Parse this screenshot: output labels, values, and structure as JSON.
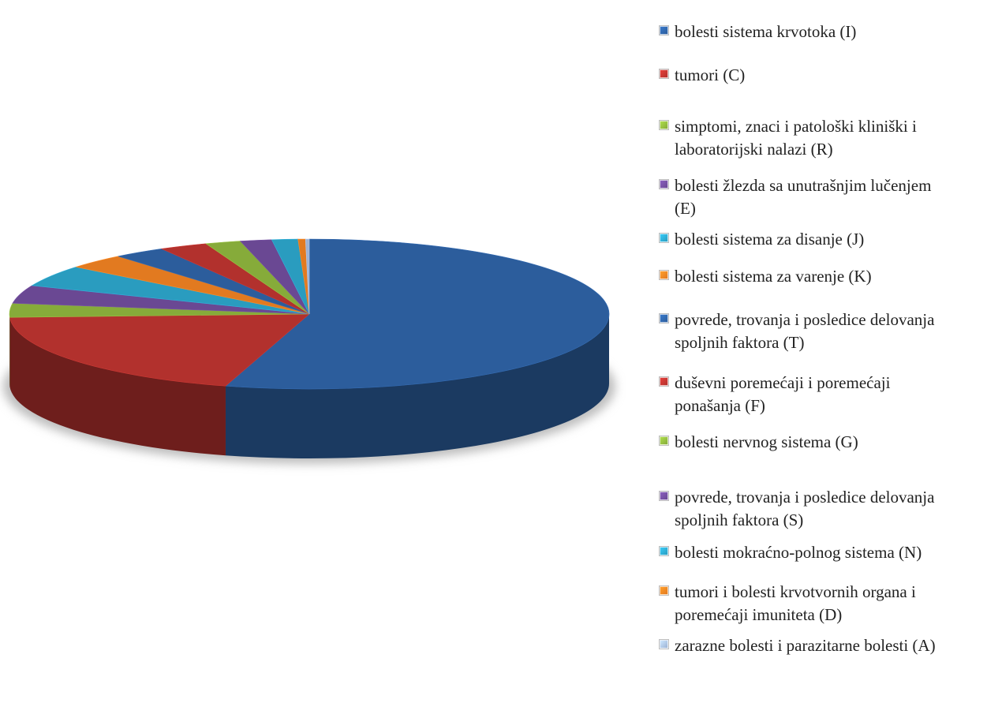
{
  "chart_data": {
    "type": "pie",
    "categories": [
      "bolesti sistema krvotoka (I)",
      "tumori (C)",
      "simptomi, znaci i patološki kliniški i laboratorijski nalazi (R)",
      "bolesti žlezda sa unutrašnjim lučenjem (E)",
      "bolesti sistema za disanje (J)",
      "bolesti sistema za varenje (K)",
      "povrede, trovanja i posledice delovanja spoljnih faktora (T)",
      "duševni poremećaji i poremećaji ponašanja (F)",
      "bolesti nervnog sistema (G)",
      "povrede, trovanja i posledice delovanja spoljnih faktora (S)",
      "bolesti mokraćno-polnog sistema (N)",
      "tumori i bolesti krvotvornih organa i poremećaji imuniteta (D)",
      "zarazne bolesti i parazitarne bolesti (A)"
    ],
    "values": [
      54.5,
      19.8,
      3.0,
      3.9,
      4.6,
      3.2,
      2.8,
      2.6,
      1.9,
      1.7,
      1.4,
      0.4,
      0.2
    ],
    "colors": [
      "#2c5d9c",
      "#b2312d",
      "#86ab3a",
      "#6a4893",
      "#2a9cbf",
      "#e27a20",
      "#2c5d9c",
      "#b2312d",
      "#86ab3a",
      "#6a4893",
      "#2a9cbf",
      "#e27a20",
      "#9db2d4"
    ],
    "legend": "right"
  }
}
